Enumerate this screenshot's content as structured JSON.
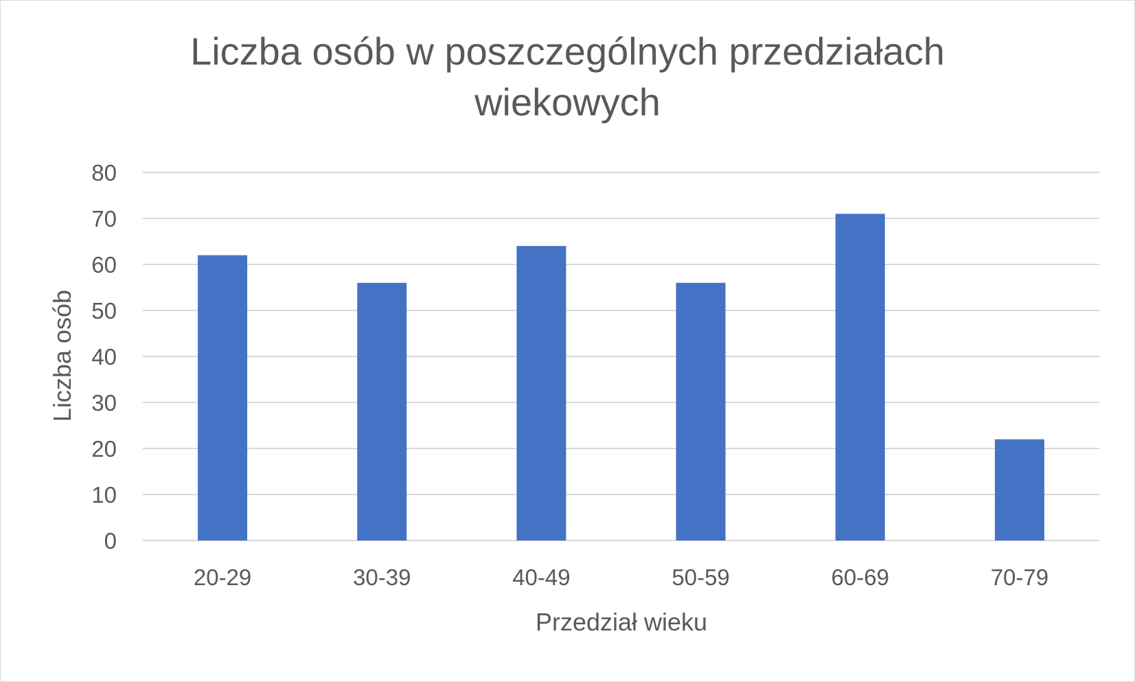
{
  "chart_data": {
    "type": "bar",
    "title": "Liczba osób w poszczególnych przedziałach wiekowych",
    "xlabel": "Przedział wieku",
    "ylabel": "Liczba osób",
    "categories": [
      "20-29",
      "30-39",
      "40-49",
      "50-59",
      "60-69",
      "70-79"
    ],
    "values": [
      62,
      56,
      64,
      56,
      71,
      22
    ],
    "ylim": [
      0,
      80
    ],
    "yticks": [
      0,
      10,
      20,
      30,
      40,
      50,
      60,
      70,
      80
    ],
    "grid": true,
    "legend": "none",
    "colors": {
      "bar": "#4472c4",
      "grid": "#d9d9d9",
      "text": "#595959"
    }
  }
}
